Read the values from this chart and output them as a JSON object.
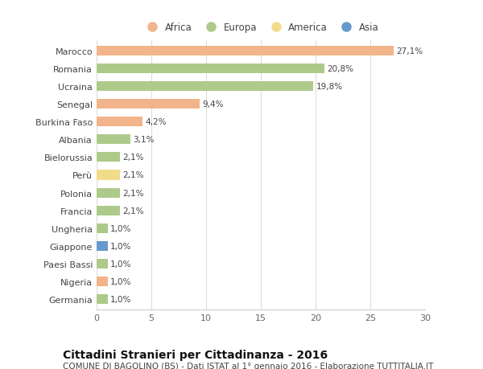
{
  "categories": [
    "Marocco",
    "Romania",
    "Ucraina",
    "Senegal",
    "Burkina Faso",
    "Albania",
    "Bielorussia",
    "Perù",
    "Polonia",
    "Francia",
    "Ungheria",
    "Giappone",
    "Paesi Bassi",
    "Nigeria",
    "Germania"
  ],
  "values": [
    27.1,
    20.8,
    19.8,
    9.4,
    4.2,
    3.1,
    2.1,
    2.1,
    2.1,
    2.1,
    1.0,
    1.0,
    1.0,
    1.0,
    1.0
  ],
  "labels": [
    "27,1%",
    "20,8%",
    "19,8%",
    "9,4%",
    "4,2%",
    "3,1%",
    "2,1%",
    "2,1%",
    "2,1%",
    "2,1%",
    "1,0%",
    "1,0%",
    "1,0%",
    "1,0%",
    "1,0%"
  ],
  "continents": [
    "Africa",
    "Europa",
    "Europa",
    "Africa",
    "Africa",
    "Europa",
    "Europa",
    "America",
    "Europa",
    "Europa",
    "Europa",
    "Asia",
    "Europa",
    "Africa",
    "Europa"
  ],
  "continent_colors": {
    "Africa": "#F2B48A",
    "Europa": "#AECA8A",
    "America": "#F2DC8A",
    "Asia": "#6699CC"
  },
  "legend_items": [
    "Africa",
    "Europa",
    "America",
    "Asia"
  ],
  "title": "Cittadini Stranieri per Cittadinanza - 2016",
  "subtitle": "COMUNE DI BAGOLINO (BS) - Dati ISTAT al 1° gennaio 2016 - Elaborazione TUTTITALIA.IT",
  "xlim": [
    0,
    30
  ],
  "xticks": [
    0,
    5,
    10,
    15,
    20,
    25,
    30
  ],
  "background_color": "#ffffff",
  "bar_label_fontsize": 7.5,
  "tick_label_fontsize": 8,
  "legend_fontsize": 8.5,
  "title_fontsize": 10,
  "subtitle_fontsize": 7.5
}
